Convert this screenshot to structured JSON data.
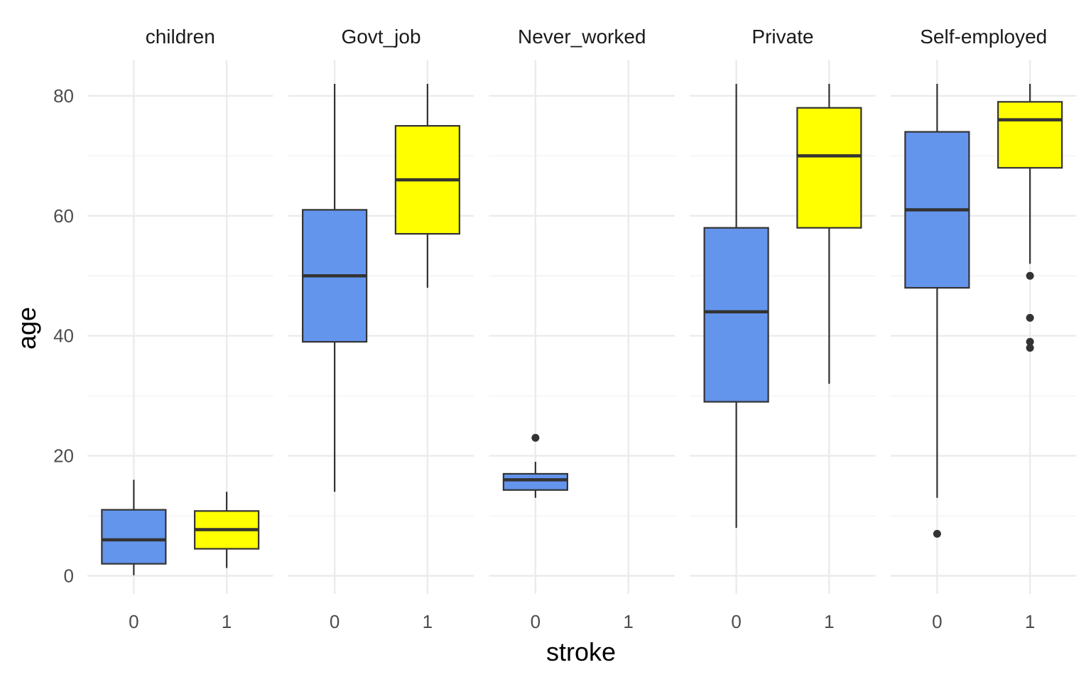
{
  "chart_data": {
    "type": "boxplot",
    "facet_variable": "work_type",
    "xlabel": "stroke",
    "ylabel": "age",
    "ylim": [
      -3,
      86
    ],
    "y_ticks": [
      0,
      20,
      40,
      60,
      80
    ],
    "x_categories": [
      "0",
      "1"
    ],
    "fill_colors": {
      "0": "#6495ED",
      "1": "#FFFF00"
    },
    "grid": true,
    "legend": "none",
    "facets": [
      {
        "name": "children",
        "boxes": [
          {
            "stroke": "0",
            "lower_whisker": 0.08,
            "q1": 2,
            "median": 6,
            "q3": 11,
            "upper_whisker": 16,
            "outliers": []
          },
          {
            "stroke": "1",
            "lower_whisker": 1.3,
            "q1": 4.5,
            "median": 7.7,
            "q3": 10.8,
            "upper_whisker": 14,
            "outliers": []
          }
        ]
      },
      {
        "name": "Govt_job",
        "boxes": [
          {
            "stroke": "0",
            "lower_whisker": 14,
            "q1": 39,
            "median": 50,
            "q3": 61,
            "upper_whisker": 82,
            "outliers": []
          },
          {
            "stroke": "1",
            "lower_whisker": 48,
            "q1": 57,
            "median": 66,
            "q3": 75,
            "upper_whisker": 82,
            "outliers": []
          }
        ]
      },
      {
        "name": "Never_worked",
        "boxes": [
          {
            "stroke": "0",
            "lower_whisker": 13,
            "q1": 14.3,
            "median": 16,
            "q3": 17,
            "upper_whisker": 19,
            "outliers": [
              23
            ]
          }
        ]
      },
      {
        "name": "Private",
        "boxes": [
          {
            "stroke": "0",
            "lower_whisker": 8,
            "q1": 29,
            "median": 44,
            "q3": 58,
            "upper_whisker": 82,
            "outliers": []
          },
          {
            "stroke": "1",
            "lower_whisker": 32,
            "q1": 58,
            "median": 70,
            "q3": 78,
            "upper_whisker": 82,
            "outliers": []
          }
        ]
      },
      {
        "name": "Self-employed",
        "boxes": [
          {
            "stroke": "0",
            "lower_whisker": 13,
            "q1": 48,
            "median": 61,
            "q3": 74,
            "upper_whisker": 82,
            "outliers": [
              7
            ]
          },
          {
            "stroke": "1",
            "lower_whisker": 52,
            "q1": 68,
            "median": 76,
            "q3": 79,
            "upper_whisker": 82,
            "outliers": [
              50,
              43,
              39,
              38
            ]
          }
        ]
      }
    ]
  }
}
